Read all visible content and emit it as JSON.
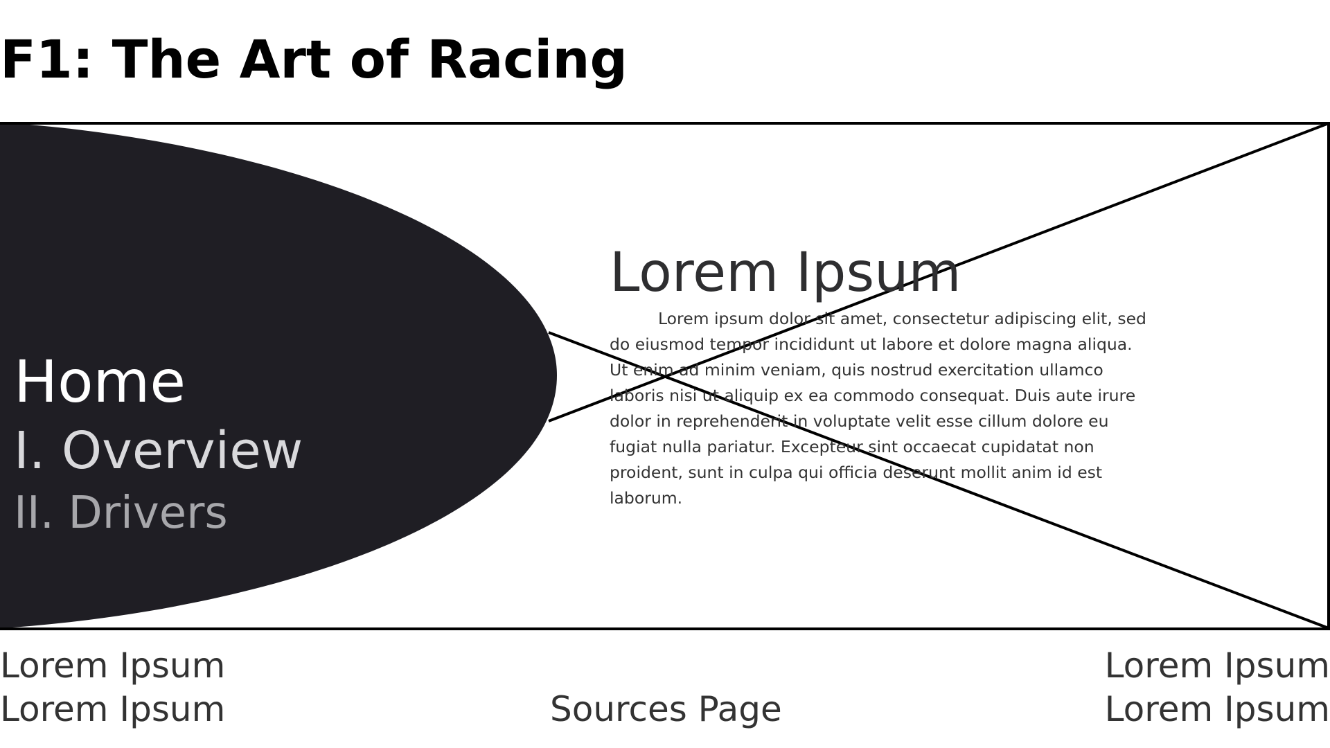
{
  "header": {
    "title": "F1: The Art of Racing"
  },
  "nav": {
    "items": [
      {
        "label": "Home"
      },
      {
        "label": "I. Overview"
      },
      {
        "label": "II. Drivers"
      }
    ]
  },
  "content": {
    "heading": "Lorem Ipsum",
    "body": "Lorem ipsum dolor sit amet, consectetur adipiscing elit, sed do eiusmod tempor incididunt ut labore et dolore magna aliqua. Ut enim ad minim veniam, quis nostrud exercitation ullamco laboris nisi ut aliquip ex ea commodo consequat. Duis aute irure dolor in reprehenderit in voluptate velit esse cillum dolore eu fugiat nulla pariatur. Excepteur sint occaecat cupidatat non proident, sunt in culpa qui officia deserunt mollit anim id est laborum."
  },
  "footer": {
    "left": [
      "Lorem Ipsum",
      "Lorem Ipsum"
    ],
    "center_link": "Sources Page",
    "right": [
      "Lorem Ipsum",
      "Lorem Ipsum"
    ]
  },
  "colors": {
    "nav_panel": "#1f1e24",
    "frame_stroke": "#000000",
    "background": "#ffffff"
  }
}
